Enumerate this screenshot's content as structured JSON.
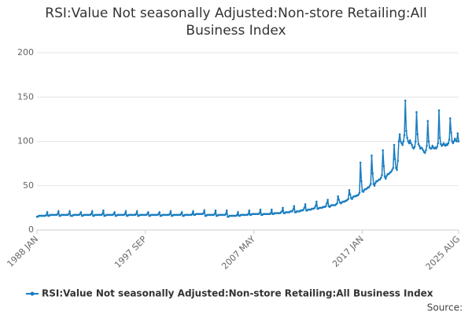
{
  "chart_data": {
    "type": "line",
    "title": "RSI:Value Not seasonally Adjusted:Non-store Retailing:All Business Index",
    "source": "Source:",
    "categories": [
      "1988 JAN",
      null,
      null,
      null,
      null,
      null,
      null,
      null,
      null,
      null,
      null,
      null,
      null,
      null,
      null,
      null,
      null,
      null,
      null,
      null,
      null,
      null,
      null,
      null,
      null,
      null,
      null,
      null,
      null,
      null,
      null,
      null,
      null,
      null,
      null,
      null,
      null,
      null,
      null,
      null,
      null,
      null,
      null,
      null,
      null,
      null,
      null,
      null,
      null,
      null,
      null,
      null,
      null,
      null,
      null,
      null,
      null,
      null,
      null,
      null,
      null,
      null,
      null,
      null,
      null,
      null,
      null,
      null,
      null,
      null,
      null,
      null,
      null,
      null,
      null,
      null,
      null,
      null,
      null,
      null,
      null,
      null,
      null,
      null,
      null,
      null,
      null,
      null,
      null,
      null,
      null,
      null,
      null,
      null,
      null,
      null,
      null,
      null,
      null,
      null,
      null,
      null,
      null,
      null,
      null,
      null,
      null,
      null,
      null,
      null,
      null,
      null,
      null,
      null,
      null,
      null,
      "1997 SEP",
      null,
      null,
      null,
      null,
      null,
      null,
      null,
      null,
      null,
      null,
      null,
      null,
      null,
      null,
      null,
      null,
      null,
      null,
      null,
      null,
      null,
      null,
      null,
      null,
      null,
      null,
      null,
      null,
      null,
      null,
      null,
      null,
      null,
      null,
      null,
      null,
      null,
      null,
      null,
      null,
      null,
      null,
      null,
      null,
      null,
      null,
      null,
      null,
      null,
      null,
      null,
      null,
      null,
      null,
      null,
      null,
      null,
      null,
      null,
      null,
      null,
      null,
      null,
      null,
      null,
      null,
      null,
      null,
      null,
      null,
      null,
      null,
      null,
      null,
      null,
      null,
      null,
      null,
      null,
      null,
      null,
      null,
      null,
      null,
      null,
      null,
      null,
      null,
      null,
      null,
      null,
      null,
      null,
      null,
      null,
      null,
      null,
      null,
      null,
      null,
      null,
      null,
      null,
      null,
      null,
      null,
      null,
      null,
      null,
      null,
      null,
      null,
      null,
      null,
      null,
      "2007 MAY",
      null,
      null,
      null,
      null,
      null,
      null,
      null,
      null,
      null,
      null,
      null,
      null,
      null,
      null,
      null,
      null,
      null,
      null,
      null,
      null,
      null,
      null,
      null,
      null,
      null,
      null,
      null,
      null,
      null,
      null,
      null,
      null,
      null,
      null,
      null,
      null,
      null,
      null,
      null,
      null,
      null,
      null,
      null,
      null,
      null,
      null,
      null,
      null,
      null,
      null,
      null,
      null,
      null,
      null,
      null,
      null,
      null,
      null,
      null,
      null,
      null,
      null,
      null,
      null,
      null,
      null,
      null,
      null,
      null,
      null,
      null,
      null,
      null,
      null,
      null,
      null,
      null,
      null,
      null,
      null,
      null,
      null,
      null,
      null,
      null,
      null,
      null,
      null,
      null,
      null,
      null,
      null,
      null,
      null,
      null,
      null,
      null,
      null,
      null,
      null,
      null,
      null,
      null,
      null,
      null,
      null,
      null,
      null,
      null,
      null,
      null,
      null,
      null,
      null,
      null,
      "2017 JAN",
      null,
      null,
      null,
      null,
      null,
      null,
      null,
      null,
      null,
      null,
      null,
      null,
      null,
      null,
      null,
      null,
      null,
      null,
      null,
      null,
      null,
      null,
      null,
      null,
      null,
      null,
      null,
      null,
      null,
      null,
      null,
      null,
      null,
      null,
      null,
      null,
      null,
      null,
      null,
      null,
      null,
      null,
      null,
      null,
      null,
      null,
      null,
      null,
      null,
      null,
      null,
      null,
      null,
      null,
      null,
      null,
      null,
      null,
      null,
      null,
      null,
      null,
      null,
      null,
      null,
      null,
      null,
      null,
      null,
      null,
      null,
      null,
      null,
      null,
      null,
      null,
      null,
      null,
      null,
      null,
      null,
      null,
      null,
      null,
      null,
      null,
      null,
      null,
      null,
      null,
      null,
      null,
      null,
      null,
      null,
      null,
      null,
      null,
      null,
      null,
      null,
      null,
      "2025 AUG"
    ],
    "series": [
      {
        "name": "RSI:Value Not seasonally Adjusted:Non-store Retailing:All Business Index",
        "color": "#1a7dc0",
        "values": [
          15,
          15,
          16,
          16,
          16,
          16,
          16,
          16,
          16,
          16,
          17,
          20,
          16,
          16,
          17,
          17,
          17,
          17,
          17,
          17,
          17,
          17,
          18,
          21,
          16,
          16,
          17,
          17,
          17,
          17,
          17,
          17,
          17,
          17,
          18,
          21,
          16,
          16,
          16,
          17,
          17,
          17,
          17,
          17,
          17,
          17,
          18,
          20,
          16,
          16,
          17,
          17,
          17,
          17,
          17,
          17,
          17,
          17,
          18,
          21,
          16,
          16,
          17,
          17,
          17,
          17,
          17,
          17,
          17,
          17,
          18,
          22,
          16,
          16,
          17,
          17,
          17,
          17,
          17,
          17,
          17,
          17,
          18,
          20,
          16,
          16,
          17,
          17,
          17,
          17,
          17,
          17,
          17,
          17,
          18,
          21,
          16,
          16,
          17,
          17,
          17,
          17,
          17,
          17,
          17,
          17,
          18,
          21,
          16,
          16,
          17,
          17,
          17,
          17,
          17,
          17,
          17,
          17,
          18,
          20,
          16,
          16,
          17,
          17,
          17,
          17,
          17,
          17,
          17,
          17,
          18,
          20,
          16,
          16,
          17,
          17,
          17,
          17,
          17,
          17,
          17,
          17,
          18,
          21,
          16,
          16,
          17,
          17,
          17,
          17,
          17,
          17,
          17,
          17,
          18,
          20,
          16,
          16,
          17,
          17,
          17,
          17,
          17,
          17,
          17,
          17,
          18,
          21,
          17,
          17,
          18,
          18,
          18,
          18,
          18,
          18,
          18,
          18,
          19,
          22,
          16,
          16,
          17,
          17,
          17,
          17,
          17,
          17,
          17,
          17,
          18,
          22,
          16,
          16,
          17,
          17,
          17,
          17,
          17,
          17,
          17,
          17,
          18,
          22,
          15,
          15,
          16,
          16,
          16,
          16,
          16,
          16,
          16,
          16,
          17,
          20,
          16,
          16,
          17,
          17,
          17,
          17,
          17,
          17,
          17,
          17,
          18,
          22,
          17,
          17,
          18,
          18,
          18,
          18,
          18,
          18,
          18,
          18,
          19,
          23,
          17,
          17,
          18,
          18,
          18,
          18,
          18,
          18,
          18,
          18,
          19,
          23,
          18,
          18,
          19,
          19,
          19,
          19,
          19,
          19,
          19,
          20,
          21,
          25,
          19,
          19,
          20,
          20,
          20,
          20,
          20,
          21,
          21,
          21,
          23,
          27,
          20,
          20,
          21,
          21,
          21,
          21,
          22,
          22,
          22,
          23,
          25,
          29,
          22,
          22,
          23,
          23,
          23,
          23,
          24,
          24,
          24,
          25,
          27,
          32,
          24,
          24,
          25,
          25,
          25,
          25,
          26,
          26,
          26,
          27,
          30,
          34,
          27,
          26,
          27,
          28,
          28,
          28,
          28,
          28,
          29,
          30,
          38,
          34,
          31,
          30,
          31,
          32,
          32,
          32,
          33,
          33,
          34,
          35,
          45,
          40,
          36,
          35,
          37,
          38,
          38,
          38,
          39,
          39,
          40,
          42,
          76,
          55,
          44,
          43,
          45,
          46,
          46,
          47,
          48,
          48,
          50,
          52,
          84,
          64,
          52,
          50,
          53,
          55,
          55,
          56,
          57,
          57,
          59,
          62,
          90,
          72,
          60,
          58,
          61,
          63,
          63,
          64,
          65,
          66,
          68,
          70,
          96,
          80,
          70,
          68,
          78,
          100,
          108,
          100,
          98,
          96,
          100,
          107,
          146,
          112,
          104,
          100,
          98,
          101,
          98,
          96,
          93,
          92,
          94,
          100,
          133,
          108,
          97,
          95,
          92,
          93,
          92,
          90,
          88,
          87,
          90,
          95,
          123,
          100,
          93,
          92,
          92,
          95,
          93,
          92,
          93,
          92,
          94,
          98,
          135,
          104,
          97,
          95,
          96,
          98,
          96,
          95,
          97,
          96,
          98,
          102,
          126,
          110,
          100,
          98,
          100,
          103,
          101,
          100,
          109,
          100
        ]
      }
    ],
    "ylim": [
      0,
      200
    ],
    "yticks": [
      0,
      50,
      100,
      150,
      200
    ],
    "grid": true
  }
}
